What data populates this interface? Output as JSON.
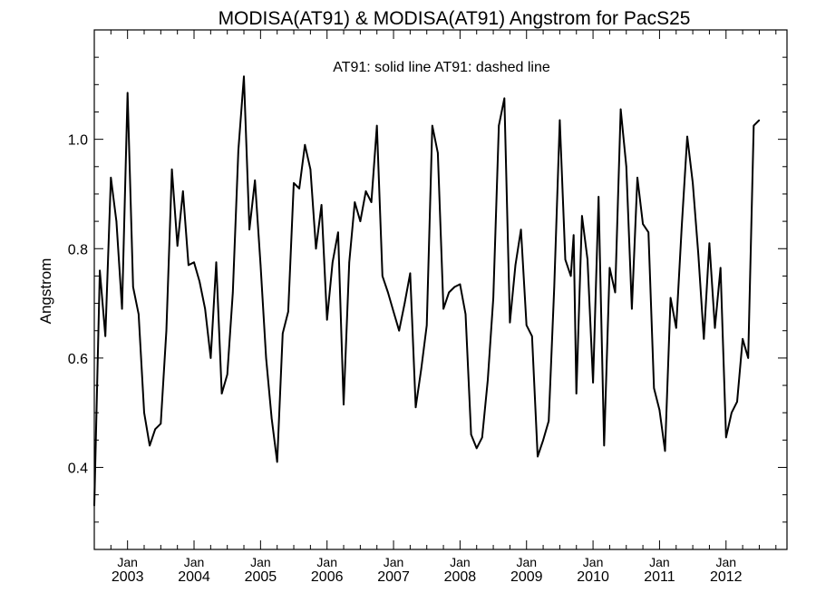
{
  "chart_data": {
    "type": "line",
    "title": "MODISA(AT91) & MODISA(AT91)  Angstrom for PacS25",
    "legend_text": "AT91: solid line   AT91: dashed line",
    "ylabel": "Angstrom",
    "xlabel": "",
    "ylim": [
      0.25,
      1.2
    ],
    "y_ticks": [
      "0.4",
      "0.6",
      "0.8",
      "1.0"
    ],
    "x_ticks": [
      {
        "month": "Jan",
        "year": "2003"
      },
      {
        "month": "Jan",
        "year": "2004"
      },
      {
        "month": "Jan",
        "year": "2005"
      },
      {
        "month": "Jan",
        "year": "2006"
      },
      {
        "month": "Jan",
        "year": "2007"
      },
      {
        "month": "Jan",
        "year": "2008"
      },
      {
        "month": "Jan",
        "year": "2009"
      },
      {
        "month": "Jan",
        "year": "2010"
      },
      {
        "month": "Jan",
        "year": "2011"
      },
      {
        "month": "Jan",
        "year": "2012"
      }
    ],
    "x_start": "2002-07",
    "x_end": "2012-12",
    "grid": false,
    "series": [
      {
        "style": "solid",
        "color": "#000000",
        "points": [
          [
            "2002-07",
            0.33
          ],
          [
            "2002-08",
            0.76
          ],
          [
            "2002-09",
            0.64
          ],
          [
            "2002-10",
            0.93
          ],
          [
            "2002-11",
            0.85
          ],
          [
            "2002-12",
            0.69
          ],
          [
            "2003-01",
            1.085
          ],
          [
            "2003-02",
            0.73
          ],
          [
            "2003-03",
            0.68
          ],
          [
            "2003-04",
            0.5
          ],
          [
            "2003-05",
            0.44
          ],
          [
            "2003-06",
            0.47
          ],
          [
            "2003-07",
            0.48
          ],
          [
            "2003-08",
            0.65
          ],
          [
            "2003-09",
            0.945
          ],
          [
            "2003-10",
            0.805
          ],
          [
            "2003-11",
            0.905
          ],
          [
            "2003-12",
            0.77
          ],
          [
            "2004-01",
            0.775
          ],
          [
            "2004-02",
            0.74
          ],
          [
            "2004-03",
            0.69
          ],
          [
            "2004-04",
            0.6
          ],
          [
            "2004-05",
            0.775
          ],
          [
            "2004-06",
            0.535
          ],
          [
            "2004-07",
            0.57
          ],
          [
            "2004-08",
            0.72
          ],
          [
            "2004-09",
            0.98
          ],
          [
            "2004-10",
            1.115
          ],
          [
            "2004-11",
            0.835
          ],
          [
            "2004-12",
            0.925
          ],
          [
            "2005-01",
            0.77
          ],
          [
            "2005-02",
            0.6
          ],
          [
            "2005-03",
            0.49
          ],
          [
            "2005-04",
            0.41
          ],
          [
            "2005-05",
            0.645
          ],
          [
            "2005-06",
            0.685
          ],
          [
            "2005-07",
            0.92
          ],
          [
            "2005-08",
            0.91
          ],
          [
            "2005-09",
            0.99
          ],
          [
            "2005-10",
            0.945
          ],
          [
            "2005-11",
            0.8
          ],
          [
            "2005-12",
            0.88
          ],
          [
            "2006-01",
            0.67
          ],
          [
            "2006-02",
            0.775
          ],
          [
            "2006-03",
            0.83
          ],
          [
            "2006-04",
            0.515
          ],
          [
            "2006-05",
            0.775
          ],
          [
            "2006-06",
            0.885
          ],
          [
            "2006-07",
            0.85
          ],
          [
            "2006-08",
            0.905
          ],
          [
            "2006-09",
            0.885
          ],
          [
            "2006-10",
            1.025
          ],
          [
            "2006-11",
            0.75
          ],
          [
            "2006-12",
            0.72
          ],
          [
            "2007-01",
            0.685
          ],
          [
            "2007-02",
            0.65
          ],
          [
            "2007-03",
            0.7
          ],
          [
            "2007-04",
            0.755
          ],
          [
            "2007-05",
            0.51
          ],
          [
            "2007-06",
            0.58
          ],
          [
            "2007-07",
            0.66
          ],
          [
            "2007-08",
            1.025
          ],
          [
            "2007-09",
            0.975
          ],
          [
            "2007-10",
            0.69
          ],
          [
            "2007-11",
            0.72
          ],
          [
            "2007-12",
            0.73
          ],
          [
            "2008-01",
            0.735
          ],
          [
            "2008-02",
            0.68
          ],
          [
            "2008-03",
            0.46
          ],
          [
            "2008-04",
            0.435
          ],
          [
            "2008-05",
            0.455
          ],
          [
            "2008-06",
            0.56
          ],
          [
            "2008-07",
            0.71
          ],
          [
            "2008-08",
            1.025
          ],
          [
            "2008-09",
            1.075
          ],
          [
            "2008-10",
            0.665
          ],
          [
            "2008-11",
            0.77
          ],
          [
            "2008-12",
            0.835
          ],
          [
            "2009-01",
            0.66
          ],
          [
            "2009-02",
            0.64
          ],
          [
            "2009-03",
            0.42
          ],
          [
            "2009-04",
            0.45
          ],
          [
            "2009-05",
            0.485
          ],
          [
            "2009-06",
            0.73
          ],
          [
            "2009-07",
            1.035
          ],
          [
            "2009-08",
            0.78
          ],
          [
            "2009-09",
            0.75
          ],
          [
            "2009-09.5",
            0.825
          ],
          [
            "2009-10",
            0.535
          ],
          [
            "2009-11",
            0.86
          ],
          [
            "2009-12",
            0.78
          ],
          [
            "2010-01",
            0.555
          ],
          [
            "2010-02",
            0.895
          ],
          [
            "2010-03",
            0.44
          ],
          [
            "2010-04",
            0.765
          ],
          [
            "2010-05",
            0.72
          ],
          [
            "2010-06",
            1.055
          ],
          [
            "2010-07",
            0.95
          ],
          [
            "2010-08",
            0.69
          ],
          [
            "2010-09",
            0.93
          ],
          [
            "2010-10",
            0.845
          ],
          [
            "2010-11",
            0.83
          ],
          [
            "2010-12",
            0.545
          ],
          [
            "2011-01",
            0.505
          ],
          [
            "2011-02",
            0.43
          ],
          [
            "2011-03",
            0.71
          ],
          [
            "2011-04",
            0.655
          ],
          [
            "2011-05",
            0.84
          ],
          [
            "2011-06",
            1.005
          ],
          [
            "2011-07",
            0.92
          ],
          [
            "2011-08",
            0.79
          ],
          [
            "2011-09",
            0.635
          ],
          [
            "2011-10",
            0.81
          ],
          [
            "2011-11",
            0.655
          ],
          [
            "2011-12",
            0.765
          ],
          [
            "2012-01",
            0.455
          ],
          [
            "2012-02",
            0.5
          ],
          [
            "2012-03",
            0.52
          ],
          [
            "2012-04",
            0.635
          ],
          [
            "2012-05",
            0.6
          ],
          [
            "2012-06",
            1.025
          ],
          [
            "2012-07",
            1.035
          ]
        ]
      }
    ]
  }
}
